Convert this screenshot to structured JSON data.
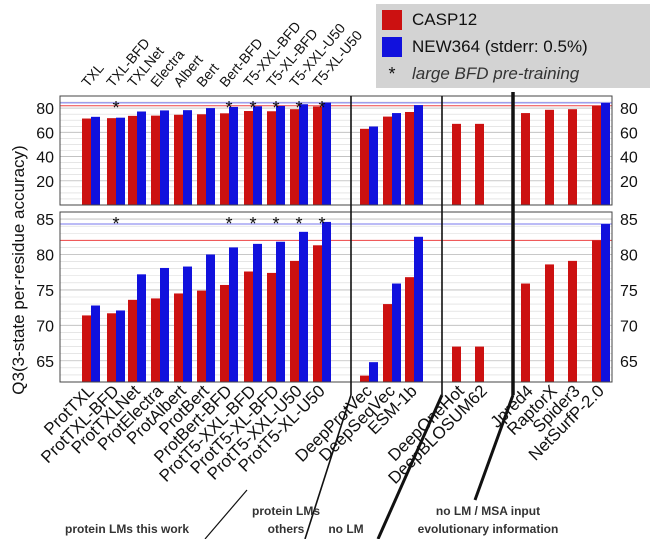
{
  "legend": {
    "series1": "CASP12",
    "series2": "NEW364 (stderr: 0.5%)",
    "note_marker": "*",
    "note": "large BFD pre-training"
  },
  "colors": {
    "casp12": "#cc1111",
    "new364": "#1111dd",
    "ref_red": "#ee4444",
    "ref_blue": "#7777ee"
  },
  "group_labels": {
    "protein_lms_this_work": "protein LMs this work",
    "protein_lms_others_1": "protein LMs",
    "protein_lms_others_2": "others",
    "no_lm": "no LM",
    "no_lm_msa_1": "no LM / MSA input",
    "no_lm_msa_2": "evolutionary information"
  },
  "chart_data": {
    "type": "bar",
    "ylabel": "Q3(3-state per-residue accuracy)",
    "categories": [
      "ProtTXL",
      "ProtTXL-BFD",
      "ProtTXLNet",
      "ProtElectra",
      "ProtAlbert",
      "ProtBert",
      "ProtBert-BFD",
      "ProtT5-XXL-BFD",
      "ProtT5-XL-BFD",
      "ProtT5-XXL-U50",
      "ProtT5-XL-U50",
      "DeepProtVec",
      "DeepSeqVec",
      "ESM-1b",
      "DeepOneHot",
      "DeepBLOSUM62",
      "Jpred4",
      "RaptorX",
      "Spider3",
      "NetSurfP-2.0"
    ],
    "top_labels": [
      "TXL",
      "TXL-BFD",
      "TXLNet",
      "Electra",
      "Albert",
      "Bert",
      "Bert-BFD",
      "T5-XXL-BFD",
      "T5-XL-BFD",
      "T5-XXL-U50",
      "T5-XL-U50"
    ],
    "large_bfd": [
      false,
      true,
      false,
      false,
      false,
      false,
      true,
      true,
      true,
      true,
      true,
      false,
      false,
      false,
      false,
      false,
      false,
      false,
      false,
      false
    ],
    "series": [
      {
        "name": "CASP12",
        "values": [
          71.4,
          71.7,
          73.6,
          73.8,
          74.5,
          74.9,
          75.7,
          77.6,
          77.4,
          79.1,
          81.3,
          62.9,
          73.0,
          76.8,
          67.0,
          67.0,
          75.9,
          78.6,
          79.1,
          82.0
        ]
      },
      {
        "name": "NEW364 (stderr: 0.5%)",
        "values": [
          72.8,
          72.1,
          77.2,
          78.1,
          78.3,
          80.0,
          81.0,
          81.5,
          81.8,
          83.2,
          84.6,
          64.8,
          75.9,
          82.5,
          null,
          null,
          null,
          null,
          null,
          84.3
        ]
      }
    ],
    "reference_lines": {
      "casp12": 82.0,
      "new364": 84.3
    },
    "panels": [
      {
        "name": "full-range",
        "ylim": [
          0,
          90
        ],
        "yticks": [
          20,
          40,
          60,
          80
        ]
      },
      {
        "name": "zoom",
        "ylim": [
          62,
          86
        ],
        "yticks": [
          65,
          70,
          75,
          80,
          85
        ]
      }
    ],
    "grid": true,
    "legend_position": "top-right"
  }
}
